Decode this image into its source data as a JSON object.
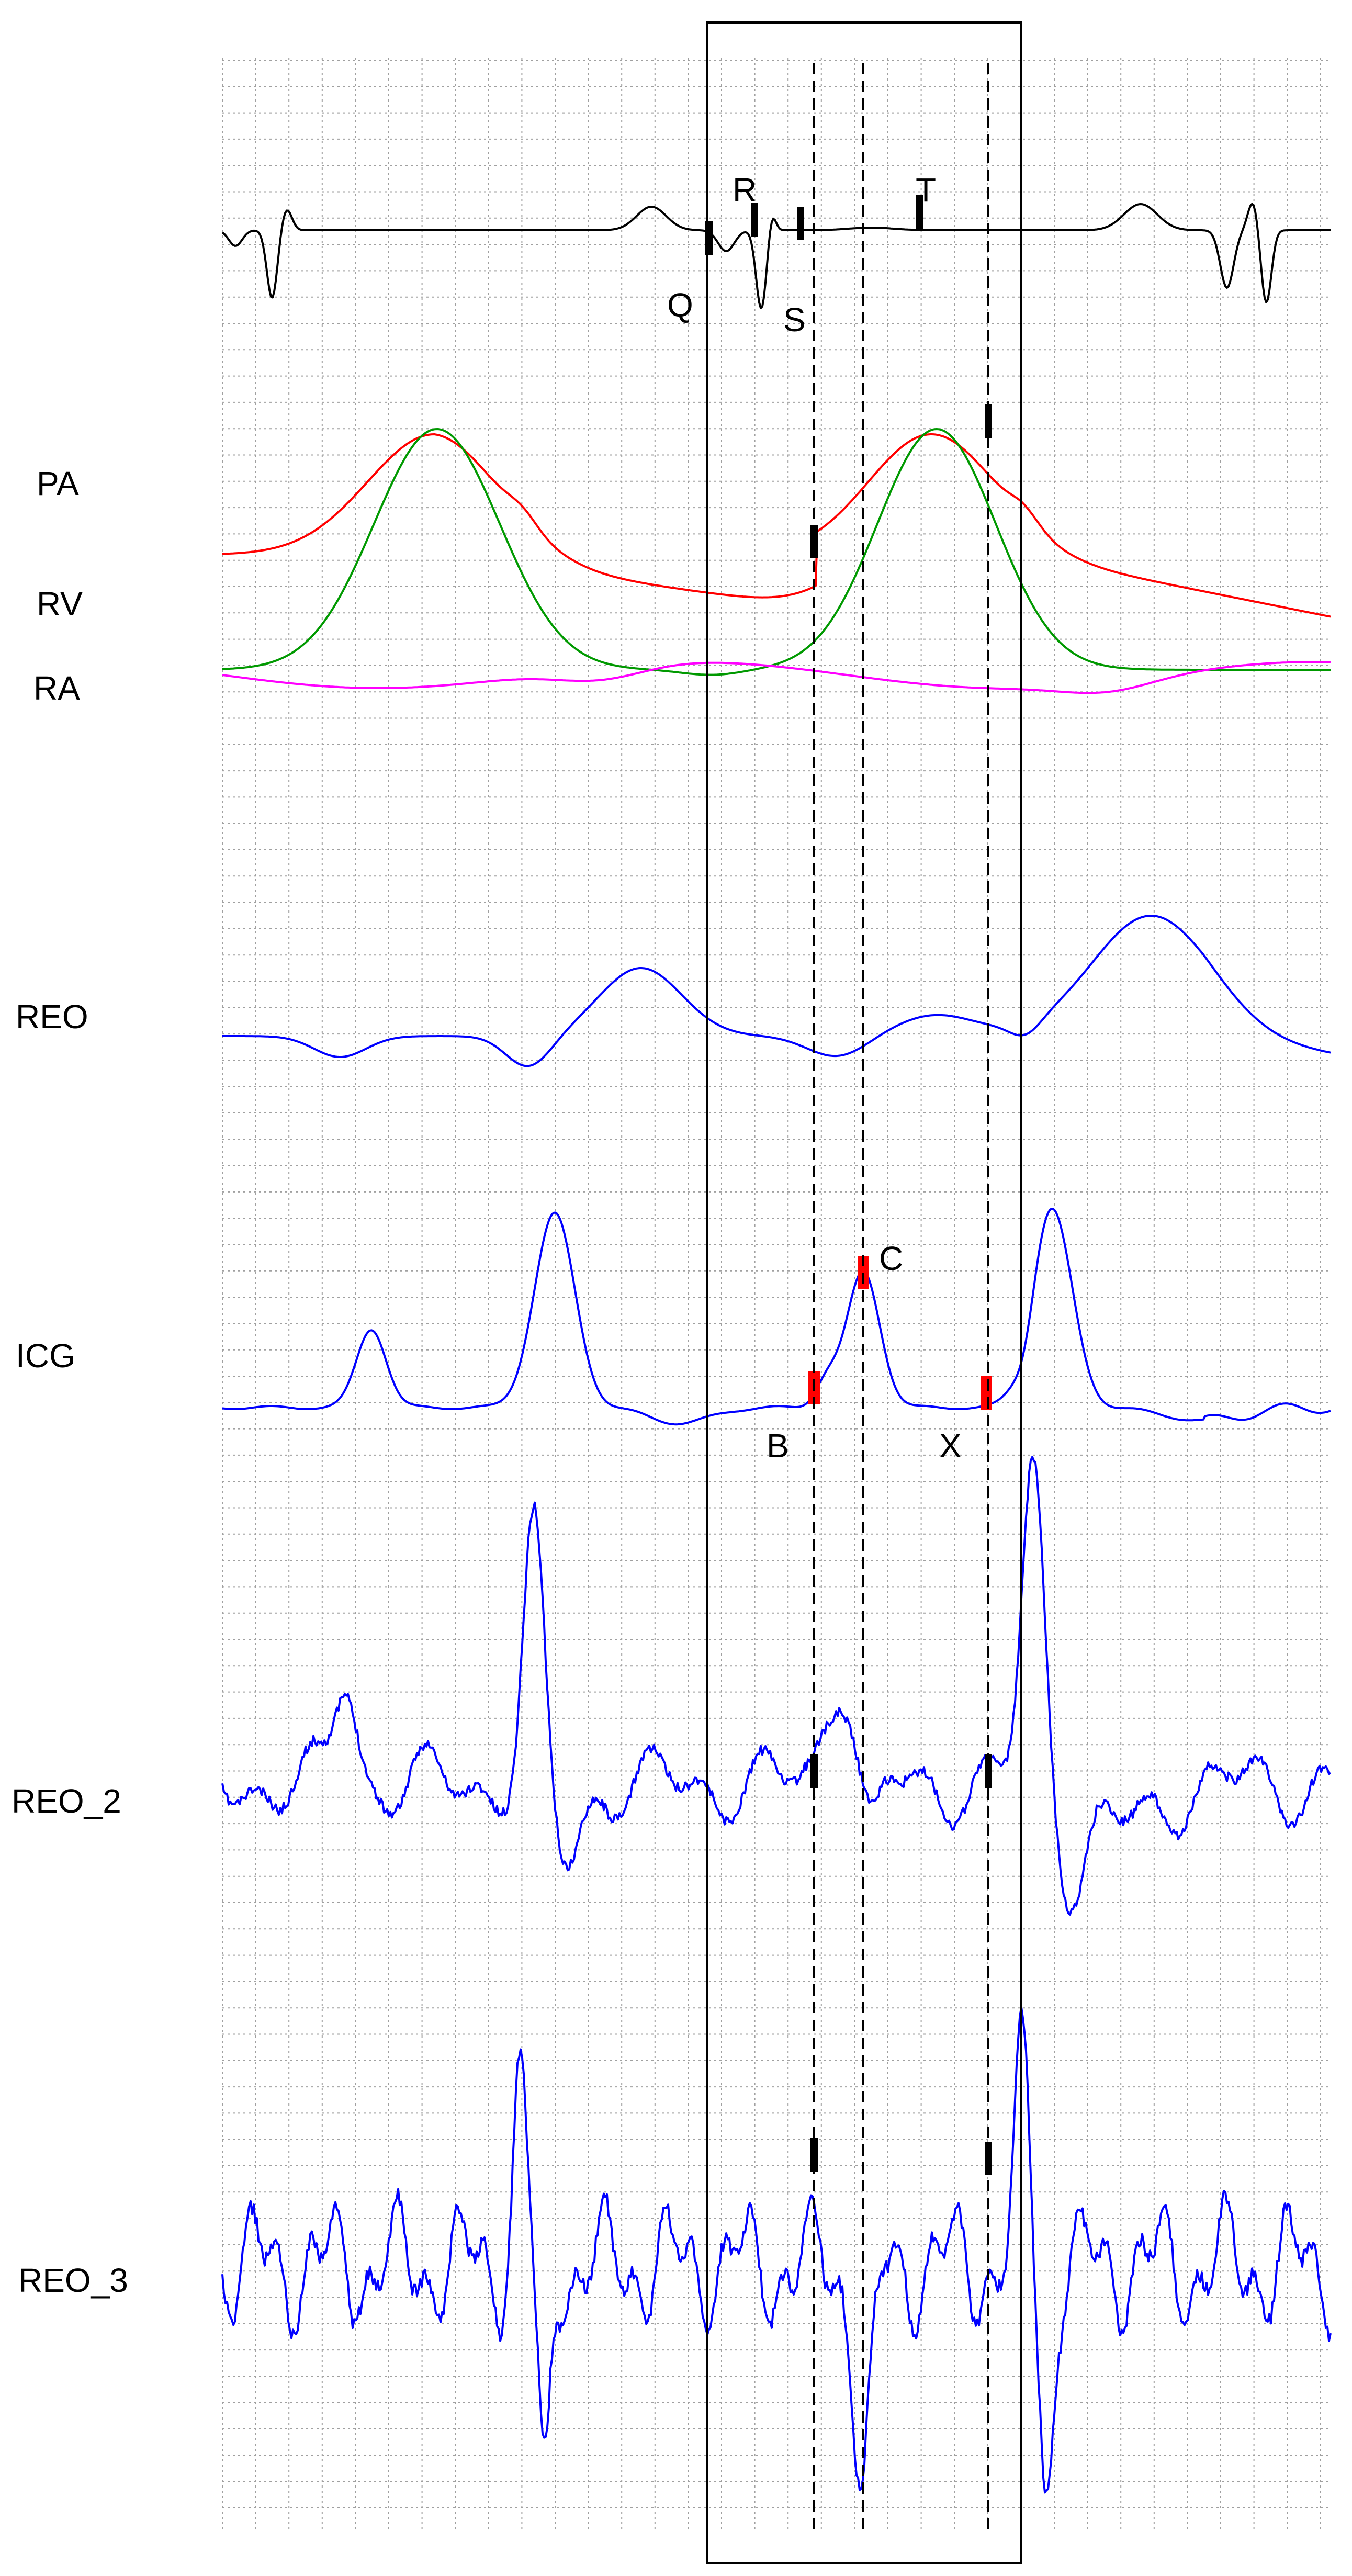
{
  "chart_data": {
    "type": "line",
    "title": "",
    "grid": true,
    "colors": {
      "ecg": "#000000",
      "PA": "#ff0000",
      "RV": "#009900",
      "RA": "#ff00ff",
      "REO": "#0000ff",
      "ICG": "#0000ff",
      "REO_2": "#0000ff",
      "REO_3": "#0000ff",
      "marker": "#000000",
      "icg_marker": "#ff0000",
      "grid": "#a0a0a0"
    },
    "channel_labels": [
      "PA",
      "RV",
      "RA",
      "REO",
      "ICG",
      "REO_2",
      "REO_3"
    ],
    "ecg_points": [
      "Q",
      "R",
      "S",
      "T"
    ],
    "icg_points": [
      "B",
      "C",
      "X"
    ],
    "note": "",
    "x": [],
    "series": []
  }
}
